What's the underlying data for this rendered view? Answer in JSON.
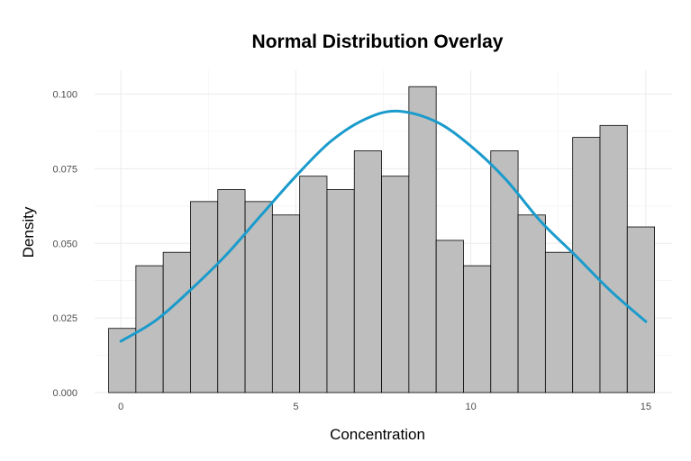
{
  "chart_data": {
    "type": "bar",
    "subtype": "histogram-with-density-curve",
    "title": "Normal Distribution Overlay",
    "xlabel": "Concentration",
    "ylabel": "Density",
    "xlim": [
      -0.75,
      15.75
    ],
    "ylim": [
      0,
      0.108
    ],
    "grid": true,
    "legend": "none",
    "bin_width": 0.78,
    "bins": [
      {
        "start": -0.35,
        "end": 0.43,
        "density": 0.0215
      },
      {
        "start": 0.43,
        "end": 1.21,
        "density": 0.0425
      },
      {
        "start": 1.21,
        "end": 1.99,
        "density": 0.047
      },
      {
        "start": 1.99,
        "end": 2.77,
        "density": 0.064
      },
      {
        "start": 2.77,
        "end": 3.55,
        "density": 0.068
      },
      {
        "start": 3.55,
        "end": 4.33,
        "density": 0.064
      },
      {
        "start": 4.33,
        "end": 5.11,
        "density": 0.0595
      },
      {
        "start": 5.11,
        "end": 5.89,
        "density": 0.0725
      },
      {
        "start": 5.89,
        "end": 6.67,
        "density": 0.068
      },
      {
        "start": 6.67,
        "end": 7.45,
        "density": 0.081
      },
      {
        "start": 7.45,
        "end": 8.23,
        "density": 0.0725
      },
      {
        "start": 8.23,
        "end": 9.01,
        "density": 0.1025
      },
      {
        "start": 9.01,
        "end": 9.79,
        "density": 0.051
      },
      {
        "start": 9.79,
        "end": 10.57,
        "density": 0.0425
      },
      {
        "start": 10.57,
        "end": 11.35,
        "density": 0.081
      },
      {
        "start": 11.35,
        "end": 12.13,
        "density": 0.0595
      },
      {
        "start": 12.13,
        "end": 12.91,
        "density": 0.047
      },
      {
        "start": 12.91,
        "end": 13.69,
        "density": 0.0855
      },
      {
        "start": 13.69,
        "end": 14.47,
        "density": 0.0895
      },
      {
        "start": 14.47,
        "end": 15.25,
        "density": 0.0555
      }
    ],
    "curve": {
      "x": [
        0.0,
        1.0,
        2.0,
        3.0,
        4.0,
        5.0,
        6.0,
        7.0,
        7.9,
        9.0,
        10.0,
        11.0,
        12.0,
        13.0,
        14.0,
        15.0
      ],
      "y": [
        0.0172,
        0.0242,
        0.0345,
        0.046,
        0.0593,
        0.0725,
        0.0842,
        0.0917,
        0.0943,
        0.0908,
        0.0826,
        0.0714,
        0.0573,
        0.0458,
        0.034,
        0.0238
      ]
    },
    "x_ticks": [
      0,
      5,
      10,
      15
    ],
    "x_tick_labels": [
      "0",
      "5",
      "10",
      "15"
    ],
    "y_ticks": [
      0,
      0.025,
      0.05,
      0.075,
      0.1
    ],
    "y_tick_labels": [
      "0.000",
      "0.025",
      "0.050",
      "0.075",
      "0.100"
    ],
    "colors": {
      "bar_fill": "#bebebe",
      "bar_outline": "#000000",
      "curve": "#1a9bcc",
      "grid": "#ebebeb",
      "tick_text": "#4d4d4d"
    }
  }
}
